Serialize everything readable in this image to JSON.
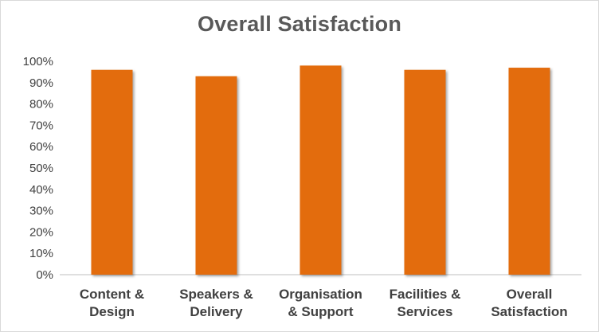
{
  "chart_data": {
    "type": "bar",
    "title": "Overall Satisfaction",
    "categories": [
      [
        "Content &",
        "Design"
      ],
      [
        "Speakers &",
        "Delivery"
      ],
      [
        "Organisation",
        "& Support"
      ],
      [
        "Facilities &",
        "Services"
      ],
      [
        "Overall",
        "Satisfaction"
      ]
    ],
    "values": [
      96,
      93,
      98,
      96,
      97
    ],
    "ylim": [
      0,
      100
    ],
    "yticks": [
      "0%",
      "10%",
      "20%",
      "30%",
      "40%",
      "50%",
      "60%",
      "70%",
      "80%",
      "90%",
      "100%"
    ],
    "bar_color": "#E36C0A",
    "grid": false
  }
}
